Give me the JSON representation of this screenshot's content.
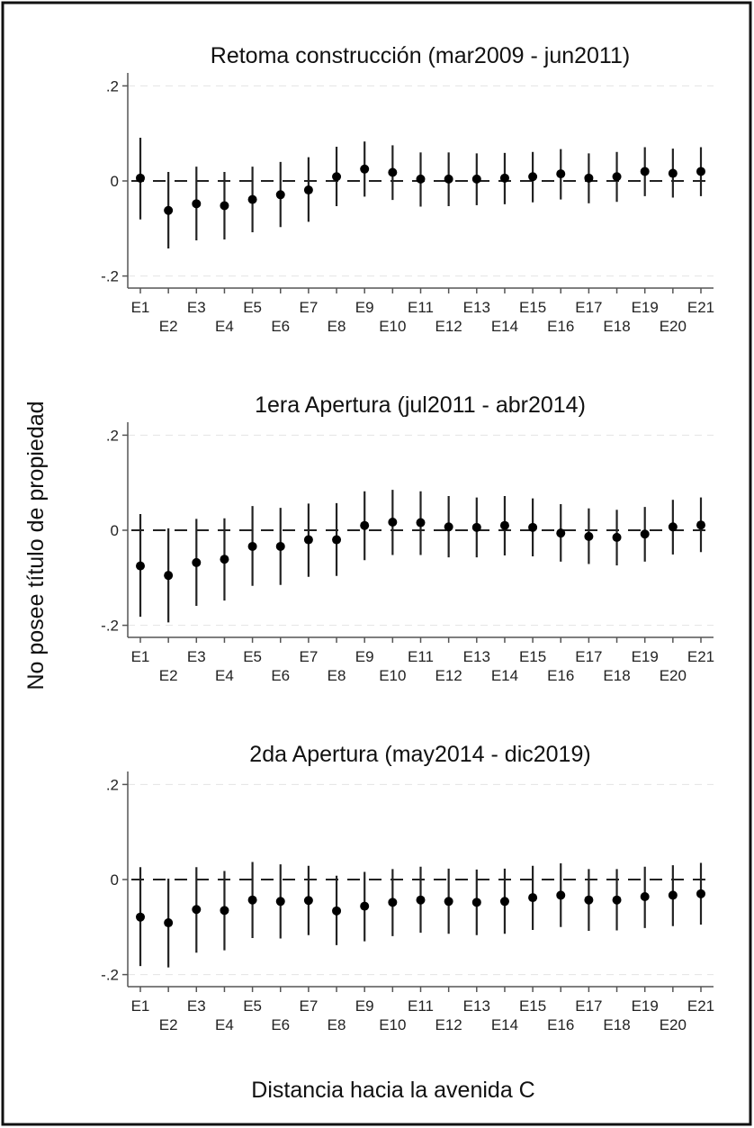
{
  "chart_data": {
    "type": "scatter",
    "subtype": "coefficient plot with confidence intervals",
    "ylabel": "No posee título de propiedad",
    "xlabel": "Distancia hacia la avenida C",
    "categories": [
      "E1",
      "E2",
      "E3",
      "E4",
      "E5",
      "E6",
      "E7",
      "E8",
      "E9",
      "E10",
      "E11",
      "E12",
      "E13",
      "E14",
      "E15",
      "E16",
      "E17",
      "E18",
      "E19",
      "E20",
      "E21"
    ],
    "ylim": [
      -0.2,
      0.2
    ],
    "yticks": [
      0.2,
      0,
      -0.2
    ],
    "ytick_labels": [
      ".2",
      "0",
      "-.2"
    ],
    "reference_line": 0,
    "grid": "dashed horizontal at ticks",
    "panels": [
      {
        "title": "Retoma construcción (mar2009 - jun2011)",
        "estimate": [
          0.006,
          -0.062,
          -0.048,
          -0.052,
          -0.039,
          -0.029,
          -0.019,
          0.009,
          0.025,
          0.018,
          0.004,
          0.004,
          0.004,
          0.006,
          0.009,
          0.015,
          0.006,
          0.009,
          0.02,
          0.016,
          0.02
        ],
        "ci_upper": [
          0.091,
          0.019,
          0.03,
          0.019,
          0.03,
          0.04,
          0.05,
          0.072,
          0.083,
          0.075,
          0.06,
          0.06,
          0.058,
          0.059,
          0.061,
          0.067,
          0.058,
          0.061,
          0.071,
          0.068,
          0.071
        ],
        "ci_lower": [
          -0.081,
          -0.142,
          -0.125,
          -0.123,
          -0.108,
          -0.097,
          -0.086,
          -0.053,
          -0.033,
          -0.04,
          -0.054,
          -0.053,
          -0.051,
          -0.049,
          -0.045,
          -0.039,
          -0.047,
          -0.044,
          -0.032,
          -0.035,
          -0.032
        ]
      },
      {
        "title": "1era Apertura (jul2011 - abr2014)",
        "estimate": [
          -0.075,
          -0.095,
          -0.068,
          -0.061,
          -0.034,
          -0.034,
          -0.02,
          -0.02,
          0.01,
          0.017,
          0.016,
          0.007,
          0.006,
          0.01,
          0.006,
          -0.006,
          -0.013,
          -0.015,
          -0.008,
          0.007,
          0.011
        ],
        "ci_upper": [
          0.034,
          0.004,
          0.024,
          0.025,
          0.051,
          0.047,
          0.056,
          0.057,
          0.082,
          0.085,
          0.082,
          0.072,
          0.069,
          0.072,
          0.067,
          0.055,
          0.046,
          0.043,
          0.049,
          0.064,
          0.069
        ],
        "ci_lower": [
          -0.182,
          -0.194,
          -0.159,
          -0.148,
          -0.117,
          -0.115,
          -0.098,
          -0.096,
          -0.063,
          -0.052,
          -0.052,
          -0.057,
          -0.057,
          -0.053,
          -0.055,
          -0.066,
          -0.071,
          -0.074,
          -0.066,
          -0.051,
          -0.046
        ]
      },
      {
        "title": "2da Apertura (may2014 - dic2019)",
        "estimate": [
          -0.079,
          -0.091,
          -0.063,
          -0.065,
          -0.043,
          -0.046,
          -0.044,
          -0.066,
          -0.056,
          -0.048,
          -0.043,
          -0.046,
          -0.048,
          -0.046,
          -0.038,
          -0.033,
          -0.043,
          -0.043,
          -0.036,
          -0.033,
          -0.03
        ],
        "ci_upper": [
          0.026,
          0.002,
          0.026,
          0.018,
          0.037,
          0.032,
          0.029,
          0.008,
          0.016,
          0.022,
          0.027,
          0.023,
          0.021,
          0.023,
          0.029,
          0.034,
          0.022,
          0.022,
          0.027,
          0.03,
          0.035
        ],
        "ci_lower": [
          -0.182,
          -0.185,
          -0.154,
          -0.149,
          -0.123,
          -0.124,
          -0.117,
          -0.138,
          -0.13,
          -0.119,
          -0.112,
          -0.114,
          -0.117,
          -0.114,
          -0.106,
          -0.1,
          -0.108,
          -0.107,
          -0.102,
          -0.098,
          -0.095
        ]
      }
    ]
  }
}
